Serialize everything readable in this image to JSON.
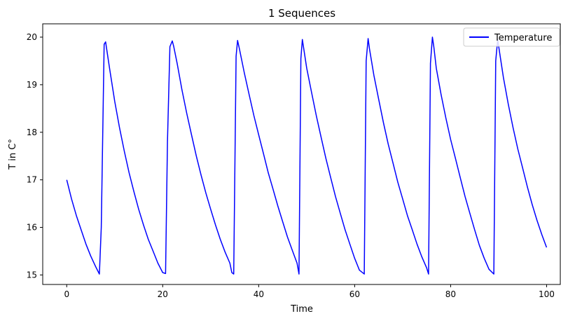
{
  "chart_data": {
    "type": "line",
    "title": "1 Sequences",
    "xlabel": "Time",
    "ylabel": "T in C°",
    "xlim": [
      -5,
      103
    ],
    "ylim": [
      14.8,
      20.28
    ],
    "xticks": [
      0,
      20,
      40,
      60,
      80,
      100
    ],
    "yticks": [
      15,
      16,
      17,
      18,
      19,
      20
    ],
    "grid": false,
    "legend_position": "top-right",
    "series": [
      {
        "name": "Temperature",
        "color": "#0000ff",
        "x": [
          0,
          1,
          2,
          3,
          4,
          5,
          6,
          6.8,
          7.2,
          7.8,
          8.1,
          8.4,
          9,
          10,
          11,
          12,
          13,
          14,
          15,
          16,
          17,
          18,
          19,
          20,
          20.6,
          21,
          21.5,
          22,
          22.3,
          23,
          24,
          25,
          26,
          27,
          28,
          29,
          30,
          31,
          32,
          33,
          34,
          34.4,
          34.8,
          35.3,
          35.6,
          36,
          37,
          38,
          39,
          40,
          41,
          42,
          43,
          44,
          45,
          46,
          47,
          48,
          48.4,
          48.8,
          49.1,
          50,
          51,
          52,
          53,
          54,
          55,
          56,
          57,
          58,
          59,
          60,
          61,
          62,
          62.4,
          62.8,
          63.1,
          64,
          65,
          66,
          67,
          68,
          69,
          70,
          71,
          72,
          73,
          74,
          75,
          75.4,
          75.8,
          76.2,
          76.5,
          77,
          78,
          79,
          80,
          81,
          82,
          83,
          84,
          85,
          86,
          87,
          88,
          89,
          89.4,
          89.8,
          90.1,
          91,
          92,
          93,
          94,
          95,
          96,
          97,
          98,
          99,
          100
        ],
        "y": [
          17.0,
          16.6,
          16.25,
          15.95,
          15.65,
          15.4,
          15.18,
          15.02,
          16.0,
          19.85,
          19.9,
          19.7,
          19.3,
          18.65,
          18.1,
          17.6,
          17.15,
          16.75,
          16.38,
          16.05,
          15.75,
          15.5,
          15.25,
          15.05,
          15.03,
          17.8,
          19.8,
          19.92,
          19.8,
          19.45,
          18.9,
          18.4,
          17.95,
          17.5,
          17.1,
          16.72,
          16.38,
          16.05,
          15.75,
          15.48,
          15.25,
          15.05,
          15.02,
          19.6,
          19.93,
          19.75,
          19.25,
          18.8,
          18.35,
          17.95,
          17.55,
          17.15,
          16.8,
          16.45,
          16.12,
          15.8,
          15.52,
          15.25,
          15.02,
          19.55,
          19.95,
          19.35,
          18.85,
          18.35,
          17.9,
          17.45,
          17.05,
          16.65,
          16.3,
          15.95,
          15.65,
          15.35,
          15.1,
          15.02,
          19.5,
          19.97,
          19.75,
          19.2,
          18.7,
          18.2,
          17.75,
          17.35,
          16.95,
          16.6,
          16.25,
          15.95,
          15.65,
          15.38,
          15.15,
          15.02,
          19.45,
          20.0,
          19.8,
          19.35,
          18.8,
          18.3,
          17.85,
          17.45,
          17.05,
          16.65,
          16.3,
          15.95,
          15.62,
          15.35,
          15.12,
          15.02,
          19.5,
          19.95,
          19.75,
          19.15,
          18.6,
          18.1,
          17.65,
          17.25,
          16.85,
          16.48,
          16.15,
          15.85,
          15.58
        ]
      }
    ]
  }
}
